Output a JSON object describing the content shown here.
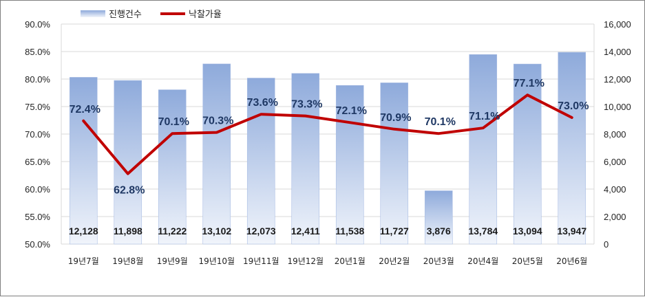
{
  "chart_data": {
    "type": "bar+line",
    "categories": [
      "19년7월",
      "19년8월",
      "19년9월",
      "19년10월",
      "19년11월",
      "19년12월",
      "20년1월",
      "20년2월",
      "20년3월",
      "20년4월",
      "20년5월",
      "20년6월"
    ],
    "series": [
      {
        "name": "진행건수",
        "type": "bar",
        "axis": "right",
        "values": [
          12128,
          11898,
          11222,
          13102,
          12073,
          12411,
          11538,
          11727,
          3876,
          13784,
          13094,
          13947
        ],
        "labels": [
          "12,128",
          "11,898",
          "11,222",
          "13,102",
          "12,073",
          "12,411",
          "11,538",
          "11,727",
          "3,876",
          "13,784",
          "13,094",
          "13,947"
        ]
      },
      {
        "name": "낙찰가율",
        "type": "line",
        "axis": "left",
        "values": [
          72.4,
          62.8,
          70.1,
          70.3,
          73.6,
          73.3,
          72.1,
          70.9,
          70.1,
          71.1,
          77.1,
          73.0
        ],
        "labels": [
          "72.4%",
          "62.8%",
          "70.1%",
          "70.3%",
          "73.6%",
          "73.3%",
          "72.1%",
          "70.9%",
          "70.1%",
          "71.1%",
          "77.1%",
          "73.0%"
        ]
      }
    ],
    "left_axis": {
      "min": 50,
      "max": 90,
      "ticks": [
        50,
        55,
        60,
        65,
        70,
        75,
        80,
        85,
        90
      ],
      "tick_labels": [
        "50.0%",
        "55.0%",
        "60.0%",
        "65.0%",
        "70.0%",
        "75.0%",
        "80.0%",
        "85.0%",
        "90.0%"
      ]
    },
    "right_axis": {
      "min": 0,
      "max": 16000,
      "ticks": [
        0,
        2000,
        4000,
        6000,
        8000,
        10000,
        12000,
        14000,
        16000
      ],
      "tick_labels": [
        "0",
        "2,000",
        "4,000",
        "6,000",
        "8,000",
        "10,000",
        "12,000",
        "14,000",
        "16,000"
      ]
    },
    "legend_position": "top-left",
    "grid": true,
    "colors": {
      "bar_top": "#8eaadb",
      "bar_bottom": "#f0f4fb",
      "bar_edge": "#a9bde3",
      "line": "#c00000",
      "line_label": "#1f3864",
      "grid": "#d9d9d9"
    }
  }
}
